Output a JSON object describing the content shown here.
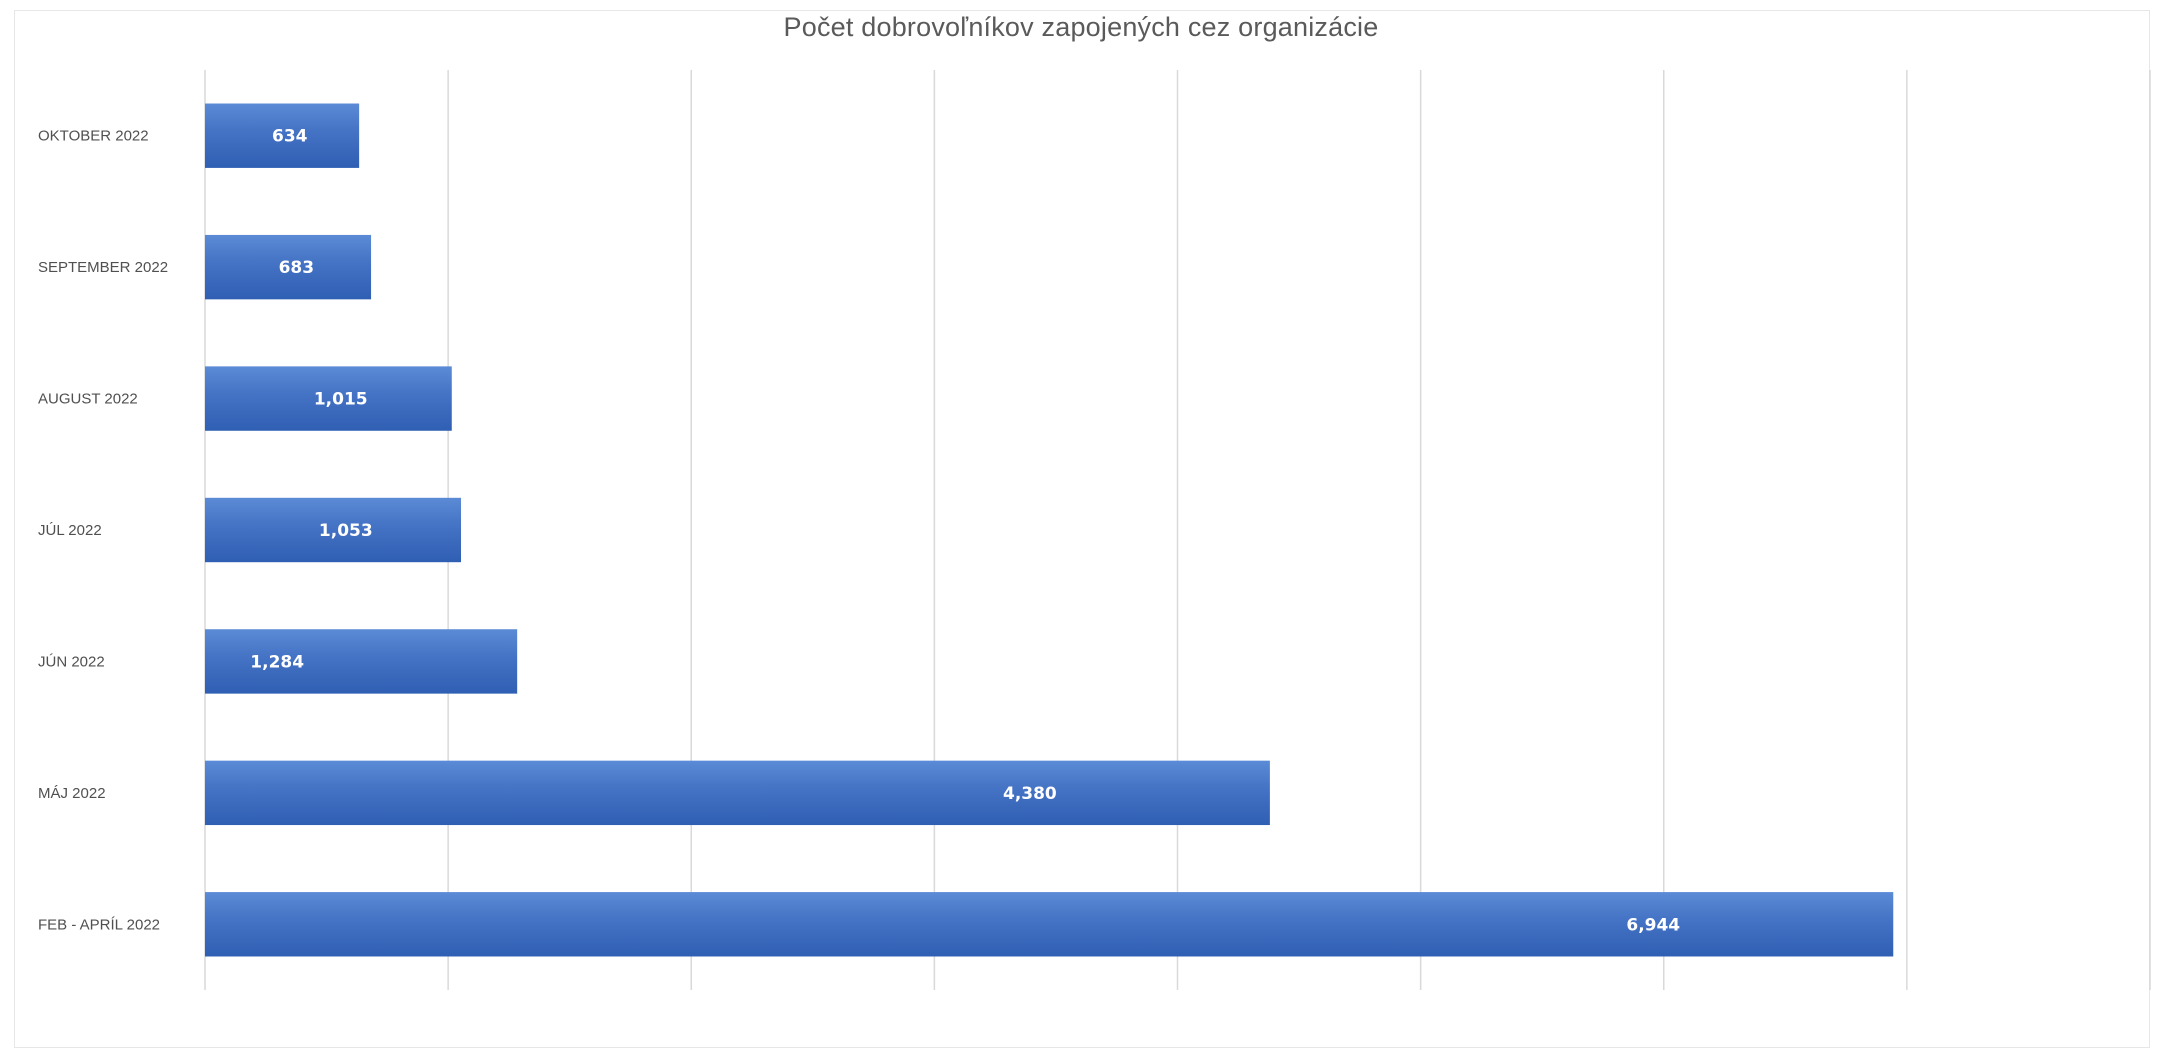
{
  "chart_data": {
    "type": "bar",
    "orientation": "horizontal",
    "title": "Počet dobrovoľníkov zapojených  cez organizácie",
    "categories": [
      "OKTOBER 2022",
      "SEPTEMBER 2022",
      "AUGUST 2022",
      "JÚL 2022",
      "JÚN 2022",
      "MÁJ 2022",
      "FEB - APRÍL 2022"
    ],
    "values": [
      634,
      683,
      1015,
      1053,
      1284,
      4380,
      6944
    ],
    "value_labels": [
      "634",
      "683",
      "1,015",
      "1,053",
      "1,284",
      "4,380",
      "6,944"
    ],
    "xlim": [
      0,
      8000
    ],
    "gridlines": [
      0,
      1000,
      2000,
      3000,
      4000,
      5000,
      6000,
      7000,
      8000
    ],
    "grid": true,
    "legend": false,
    "xlabel": "",
    "ylabel": "",
    "bar_color": "#4472c4",
    "bar_color_light": "#5b8bd6",
    "bar_color_dark": "#2f5fb3"
  }
}
